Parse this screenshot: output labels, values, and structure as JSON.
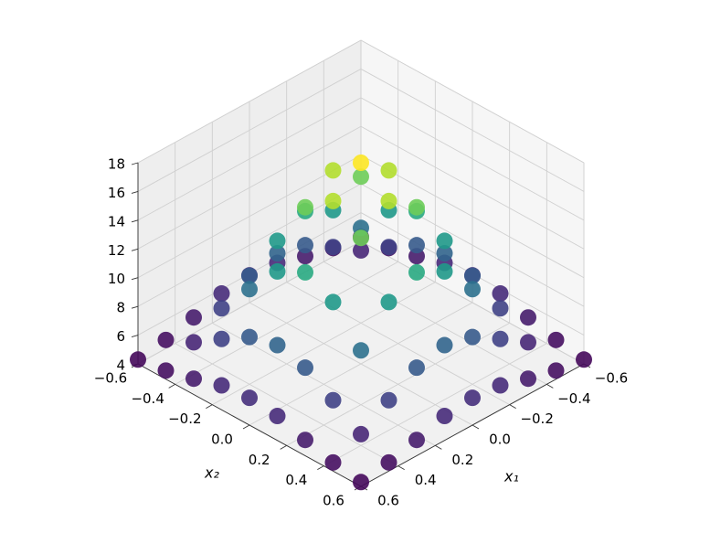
{
  "chart_data": {
    "type": "scatter3d",
    "colormap": "viridis",
    "x1_label": "x₁",
    "x2_label": "x₂",
    "x1lim": [
      -0.6,
      0.6
    ],
    "x2lim": [
      -0.6,
      0.6
    ],
    "zlim": [
      4,
      18
    ],
    "x1ticks": [
      {
        "value": -0.6,
        "label": "−0.6"
      },
      {
        "value": -0.4,
        "label": "−0.4"
      },
      {
        "value": -0.2,
        "label": "−0.2"
      },
      {
        "value": 0,
        "label": "0.0"
      },
      0.2,
      0.4,
      0.6
    ],
    "x2ticks": [
      {
        "value": -0.6,
        "label": "−0.6"
      },
      {
        "value": -0.4,
        "label": "−0.4"
      },
      {
        "value": -0.2,
        "label": "−0.2"
      },
      {
        "value": 0,
        "label": "0.0"
      },
      0.2,
      0.4,
      0.6
    ],
    "zticks": [
      4,
      6,
      8,
      10,
      12,
      14,
      16,
      18
    ],
    "grid": true,
    "x1": [
      -0.6,
      -0.6,
      -0.6,
      -0.6,
      -0.6,
      -0.6,
      -0.6,
      -0.6,
      -0.6,
      -0.45,
      -0.45,
      -0.45,
      -0.45,
      -0.45,
      -0.45,
      -0.45,
      -0.45,
      -0.45,
      -0.3,
      -0.3,
      -0.3,
      -0.3,
      -0.3,
      -0.3,
      -0.3,
      -0.3,
      -0.3,
      -0.15,
      -0.15,
      -0.15,
      -0.15,
      -0.15,
      -0.15,
      -0.15,
      -0.15,
      -0.15,
      0,
      0,
      0,
      0,
      0,
      0,
      0,
      0,
      0,
      0.15,
      0.15,
      0.15,
      0.15,
      0.15,
      0.15,
      0.15,
      0.15,
      0.15,
      0.3,
      0.3,
      0.3,
      0.3,
      0.3,
      0.3,
      0.3,
      0.3,
      0.3,
      0.45,
      0.45,
      0.45,
      0.45,
      0.45,
      0.45,
      0.45,
      0.45,
      0.45,
      0.6,
      0.6,
      0.6,
      0.6,
      0.6,
      0.6,
      0.6,
      0.6,
      0.6
    ],
    "x2": [
      -0.6,
      -0.45,
      -0.3,
      -0.15,
      0,
      0.15,
      0.3,
      0.45,
      0.6,
      -0.6,
      -0.45,
      -0.3,
      -0.15,
      0,
      0.15,
      0.3,
      0.45,
      0.6,
      -0.6,
      -0.45,
      -0.3,
      -0.15,
      0,
      0.15,
      0.3,
      0.45,
      0.6,
      -0.6,
      -0.45,
      -0.3,
      -0.15,
      0,
      0.15,
      0.3,
      0.45,
      0.6,
      -0.6,
      -0.45,
      -0.3,
      -0.15,
      0,
      0.15,
      0.3,
      0.45,
      0.6,
      -0.6,
      -0.45,
      -0.3,
      -0.15,
      0,
      0.15,
      0.3,
      0.45,
      0.6,
      -0.6,
      -0.45,
      -0.3,
      -0.15,
      0,
      0.15,
      0.3,
      0.45,
      0.6,
      -0.6,
      -0.45,
      -0.3,
      -0.15,
      0,
      0.15,
      0.3,
      0.45,
      0.6,
      -0.6,
      -0.45,
      -0.3,
      -0.15,
      0,
      0.15,
      0.3,
      0.45,
      0.6
    ],
    "z": [
      4.3,
      4.6,
      5.1,
      5.7,
      5.9,
      5.7,
      5.1,
      4.6,
      4.3,
      4.6,
      5.5,
      6.8,
      8.0,
      8.5,
      8.0,
      6.8,
      5.5,
      4.6,
      5.1,
      6.8,
      9.2,
      11.5,
      12.5,
      11.5,
      9.2,
      6.8,
      5.1,
      5.7,
      8.0,
      11.5,
      14.9,
      16.4,
      14.9,
      11.5,
      8.0,
      5.7,
      5.9,
      8.5,
      12.5,
      16.4,
      18.0,
      16.4,
      12.5,
      8.5,
      5.9,
      5.7,
      8.0,
      11.5,
      14.9,
      16.4,
      14.9,
      11.5,
      8.0,
      5.7,
      5.1,
      6.8,
      9.2,
      11.5,
      12.5,
      11.5,
      9.2,
      6.8,
      5.1,
      4.6,
      5.5,
      6.8,
      8.0,
      8.5,
      8.0,
      6.8,
      5.5,
      4.6,
      4.3,
      4.6,
      5.1,
      5.7,
      5.9,
      5.7,
      5.1,
      4.6,
      4.3
    ]
  }
}
